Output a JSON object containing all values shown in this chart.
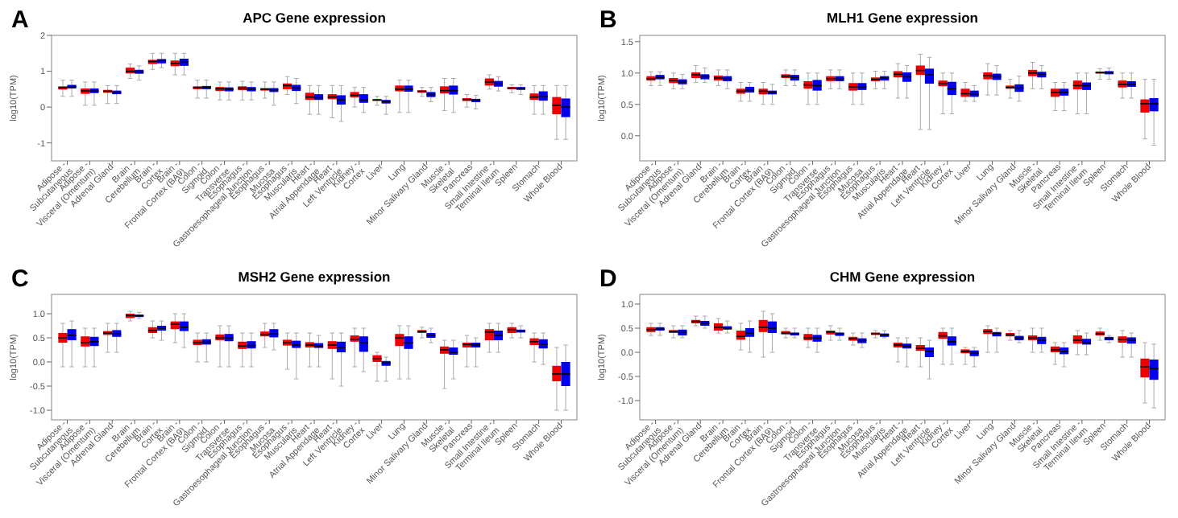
{
  "chart_data": [
    {
      "type": "box",
      "title": "APC Gene expression",
      "ylabel": "log10(TPM)",
      "annotations": [
        "A"
      ],
      "categories": [
        "Adipose - Subcutaneous",
        "Adipose - Visceral (Omentum)",
        "Adrenal Gland",
        "Brain - Cerebellum",
        "Brain - Cortex",
        "Brain - Frontal Cortex (BA9)",
        "Colon - Sigmoid",
        "Colon - Transverse",
        "Esophagus - Gastroesophageal Junction",
        "Esophagus - Mucosa",
        "Esophagus - Muscularis",
        "Heart - Atrial Appendage",
        "Heart - Left Ventricle",
        "Kidney - Cortex",
        "Liver",
        "Lung",
        "Minor Salivary Gland",
        "Muscle - Skeletal",
        "Pancreas",
        "Small Intestine - Terminal Ileum",
        "Spleen",
        "Stomach",
        "Whole Blood"
      ],
      "ylim": [
        -1.5,
        2
      ],
      "yticks": [
        -1,
        0,
        1,
        2
      ],
      "series": [
        {
          "color": "#ee0000",
          "boxes": [
            {
              "low": 0.3,
              "q1": 0.49,
              "median": 0.54,
              "q3": 0.58,
              "high": 0.75
            },
            {
              "low": 0.05,
              "q1": 0.37,
              "median": 0.45,
              "q3": 0.52,
              "high": 0.7
            },
            {
              "low": 0.1,
              "q1": 0.4,
              "median": 0.44,
              "q3": 0.48,
              "high": 0.6
            },
            {
              "low": 0.8,
              "q1": 0.94,
              "median": 1.0,
              "q3": 1.1,
              "high": 1.2
            },
            {
              "low": 1.05,
              "q1": 1.2,
              "median": 1.27,
              "q3": 1.32,
              "high": 1.5
            },
            {
              "low": 0.9,
              "q1": 1.14,
              "median": 1.22,
              "q3": 1.3,
              "high": 1.5
            },
            {
              "low": 0.25,
              "q1": 0.5,
              "median": 0.54,
              "q3": 0.58,
              "high": 0.75
            },
            {
              "low": 0.2,
              "q1": 0.45,
              "median": 0.51,
              "q3": 0.56,
              "high": 0.7
            },
            {
              "low": 0.2,
              "q1": 0.47,
              "median": 0.53,
              "q3": 0.58,
              "high": 0.72
            },
            {
              "low": 0.25,
              "q1": 0.46,
              "median": 0.5,
              "q3": 0.53,
              "high": 0.7
            },
            {
              "low": 0.35,
              "q1": 0.5,
              "median": 0.6,
              "q3": 0.66,
              "high": 0.85
            },
            {
              "low": -0.2,
              "q1": 0.2,
              "median": 0.28,
              "q3": 0.4,
              "high": 0.6
            },
            {
              "low": -0.3,
              "q1": 0.22,
              "median": 0.28,
              "q3": 0.36,
              "high": 0.6
            },
            {
              "low": 0.0,
              "q1": 0.27,
              "median": 0.33,
              "q3": 0.42,
              "high": 0.55
            },
            {
              "low": 0.05,
              "q1": 0.17,
              "median": 0.2,
              "q3": 0.22,
              "high": 0.3
            },
            {
              "low": -0.15,
              "q1": 0.44,
              "median": 0.5,
              "q3": 0.6,
              "high": 0.75
            },
            {
              "low": 0.3,
              "q1": 0.4,
              "median": 0.44,
              "q3": 0.47,
              "high": 0.55
            },
            {
              "low": -0.1,
              "q1": 0.38,
              "median": 0.46,
              "q3": 0.58,
              "high": 0.8
            },
            {
              "low": 0.0,
              "q1": 0.17,
              "median": 0.21,
              "q3": 0.25,
              "high": 0.35
            },
            {
              "low": 0.5,
              "q1": 0.6,
              "median": 0.7,
              "q3": 0.8,
              "high": 0.9
            },
            {
              "low": 0.4,
              "q1": 0.5,
              "median": 0.53,
              "q3": 0.56,
              "high": 0.62
            },
            {
              "low": -0.2,
              "q1": 0.2,
              "median": 0.28,
              "q3": 0.38,
              "high": 0.6
            },
            {
              "low": -0.9,
              "q1": -0.2,
              "median": 0.05,
              "q3": 0.28,
              "high": 0.6
            }
          ]
        },
        {
          "color": "#0000ee",
          "boxes": [
            {
              "low": 0.3,
              "q1": 0.52,
              "median": 0.57,
              "q3": 0.62,
              "high": 0.75
            },
            {
              "low": 0.05,
              "q1": 0.39,
              "median": 0.45,
              "q3": 0.52,
              "high": 0.7
            },
            {
              "low": 0.1,
              "q1": 0.36,
              "median": 0.4,
              "q3": 0.46,
              "high": 0.6
            },
            {
              "low": 0.75,
              "q1": 0.93,
              "median": 0.98,
              "q3": 1.04,
              "high": 1.15
            },
            {
              "low": 1.1,
              "q1": 1.22,
              "median": 1.3,
              "q3": 1.34,
              "high": 1.5
            },
            {
              "low": 0.9,
              "q1": 1.15,
              "median": 1.25,
              "q3": 1.35,
              "high": 1.5
            },
            {
              "low": 0.25,
              "q1": 0.5,
              "median": 0.55,
              "q3": 0.59,
              "high": 0.75
            },
            {
              "low": 0.2,
              "q1": 0.44,
              "median": 0.5,
              "q3": 0.55,
              "high": 0.7
            },
            {
              "low": 0.2,
              "q1": 0.44,
              "median": 0.5,
              "q3": 0.56,
              "high": 0.7
            },
            {
              "low": 0.05,
              "q1": 0.42,
              "median": 0.48,
              "q3": 0.53,
              "high": 0.7
            },
            {
              "low": 0.1,
              "q1": 0.45,
              "median": 0.53,
              "q3": 0.62,
              "high": 0.8
            },
            {
              "low": -0.2,
              "q1": 0.2,
              "median": 0.26,
              "q3": 0.36,
              "high": 0.6
            },
            {
              "low": -0.4,
              "q1": 0.07,
              "median": 0.2,
              "q3": 0.33,
              "high": 0.6
            },
            {
              "low": -0.15,
              "q1": 0.12,
              "median": 0.2,
              "q3": 0.36,
              "high": 0.55
            },
            {
              "low": -0.2,
              "q1": 0.1,
              "median": 0.15,
              "q3": 0.2,
              "high": 0.3
            },
            {
              "low": -0.15,
              "q1": 0.43,
              "median": 0.5,
              "q3": 0.6,
              "high": 0.75
            },
            {
              "low": 0.15,
              "q1": 0.28,
              "median": 0.35,
              "q3": 0.42,
              "high": 0.55
            },
            {
              "low": -0.15,
              "q1": 0.35,
              "median": 0.46,
              "q3": 0.6,
              "high": 0.8
            },
            {
              "low": -0.05,
              "q1": 0.14,
              "median": 0.18,
              "q3": 0.23,
              "high": 0.33
            },
            {
              "low": 0.45,
              "q1": 0.57,
              "median": 0.66,
              "q3": 0.73,
              "high": 0.85
            },
            {
              "low": 0.35,
              "q1": 0.48,
              "median": 0.52,
              "q3": 0.56,
              "high": 0.62
            },
            {
              "low": -0.2,
              "q1": 0.18,
              "median": 0.3,
              "q3": 0.44,
              "high": 0.6
            },
            {
              "low": -0.9,
              "q1": -0.28,
              "median": 0.0,
              "q3": 0.24,
              "high": 0.6
            }
          ]
        }
      ]
    },
    {
      "type": "box",
      "title": "MLH1 Gene expression",
      "ylabel": "log10(TPM)",
      "annotations": [
        "B"
      ],
      "categories": [
        "Adipose - Subcutaneous",
        "Adipose - Visceral (Omentum)",
        "Adrenal Gland",
        "Brain - Cerebellum",
        "Brain - Cortex",
        "Brain - Frontal Cortex (BA9)",
        "Colon - Sigmoid",
        "Colon - Transverse",
        "Esophagus - Gastroesophageal Junction",
        "Esophagus - Mucosa",
        "Esophagus - Muscularis",
        "Heart - Atrial Appendage",
        "Heart - Left Ventricle",
        "Kidney - Cortex",
        "Liver",
        "Lung",
        "Minor Salivary Gland",
        "Muscle - Skeletal",
        "Pancreas",
        "Small Intestine - Terminal Ileum",
        "Spleen",
        "Stomach",
        "Whole Blood"
      ],
      "ylim": [
        -0.4,
        1.6
      ],
      "yticks": [
        {
          "value": 0,
          "label": "0.0"
        },
        0.5,
        {
          "value": 1,
          "label": "1.0"
        },
        1.5
      ],
      "series": [
        {
          "color": "#ee0000",
          "boxes": [
            {
              "low": 0.8,
              "q1": 0.88,
              "median": 0.91,
              "q3": 0.95,
              "high": 1.02
            },
            {
              "low": 0.75,
              "q1": 0.84,
              "median": 0.88,
              "q3": 0.92,
              "high": 1.0
            },
            {
              "low": 0.85,
              "q1": 0.92,
              "median": 0.97,
              "q3": 1.01,
              "high": 1.12
            },
            {
              "low": 0.8,
              "q1": 0.88,
              "median": 0.92,
              "q3": 0.96,
              "high": 1.05
            },
            {
              "low": 0.55,
              "q1": 0.67,
              "median": 0.71,
              "q3": 0.75,
              "high": 0.85
            },
            {
              "low": 0.5,
              "q1": 0.66,
              "median": 0.71,
              "q3": 0.75,
              "high": 0.85
            },
            {
              "low": 0.8,
              "q1": 0.92,
              "median": 0.95,
              "q3": 0.98,
              "high": 1.05
            },
            {
              "low": 0.5,
              "q1": 0.75,
              "median": 0.81,
              "q3": 0.87,
              "high": 1.0
            },
            {
              "low": 0.75,
              "q1": 0.87,
              "median": 0.91,
              "q3": 0.95,
              "high": 1.05
            },
            {
              "low": 0.5,
              "q1": 0.72,
              "median": 0.78,
              "q3": 0.84,
              "high": 1.0
            },
            {
              "low": 0.75,
              "q1": 0.87,
              "median": 0.9,
              "q3": 0.93,
              "high": 1.03
            },
            {
              "low": 0.6,
              "q1": 0.93,
              "median": 0.98,
              "q3": 1.03,
              "high": 1.15
            },
            {
              "low": 0.1,
              "q1": 0.97,
              "median": 1.04,
              "q3": 1.12,
              "high": 1.3
            },
            {
              "low": 0.35,
              "q1": 0.79,
              "median": 0.83,
              "q3": 0.88,
              "high": 1.0
            },
            {
              "low": 0.55,
              "q1": 0.62,
              "median": 0.67,
              "q3": 0.75,
              "high": 0.85
            },
            {
              "low": 0.65,
              "q1": 0.9,
              "median": 0.96,
              "q3": 1.01,
              "high": 1.15
            },
            {
              "low": 0.6,
              "q1": 0.75,
              "median": 0.77,
              "q3": 0.8,
              "high": 0.9
            },
            {
              "low": 0.75,
              "q1": 0.95,
              "median": 1.0,
              "q3": 1.05,
              "high": 1.17
            },
            {
              "low": 0.4,
              "q1": 0.62,
              "median": 0.69,
              "q3": 0.75,
              "high": 0.85
            },
            {
              "low": 0.35,
              "q1": 0.74,
              "median": 0.8,
              "q3": 0.88,
              "high": 1.0
            },
            {
              "low": 0.9,
              "q1": 0.99,
              "median": 1.01,
              "q3": 1.02,
              "high": 1.07
            },
            {
              "low": 0.6,
              "q1": 0.77,
              "median": 0.82,
              "q3": 0.88,
              "high": 1.0
            },
            {
              "low": -0.05,
              "q1": 0.37,
              "median": 0.51,
              "q3": 0.58,
              "high": 0.9
            }
          ]
        },
        {
          "color": "#0000ee",
          "boxes": [
            {
              "low": 0.8,
              "q1": 0.9,
              "median": 0.93,
              "q3": 0.97,
              "high": 1.02
            },
            {
              "low": 0.75,
              "q1": 0.82,
              "median": 0.86,
              "q3": 0.9,
              "high": 0.98
            },
            {
              "low": 0.85,
              "q1": 0.9,
              "median": 0.94,
              "q3": 0.98,
              "high": 1.08
            },
            {
              "low": 0.75,
              "q1": 0.87,
              "median": 0.91,
              "q3": 0.95,
              "high": 1.05
            },
            {
              "low": 0.55,
              "q1": 0.69,
              "median": 0.73,
              "q3": 0.78,
              "high": 0.85
            },
            {
              "low": 0.5,
              "q1": 0.66,
              "median": 0.69,
              "q3": 0.72,
              "high": 0.82
            },
            {
              "low": 0.8,
              "q1": 0.88,
              "median": 0.93,
              "q3": 0.97,
              "high": 1.05
            },
            {
              "low": 0.5,
              "q1": 0.72,
              "median": 0.8,
              "q3": 0.89,
              "high": 1.0
            },
            {
              "low": 0.75,
              "q1": 0.87,
              "median": 0.91,
              "q3": 0.95,
              "high": 1.05
            },
            {
              "low": 0.5,
              "q1": 0.73,
              "median": 0.78,
              "q3": 0.84,
              "high": 1.0
            },
            {
              "low": 0.75,
              "q1": 0.88,
              "median": 0.92,
              "q3": 0.95,
              "high": 1.03
            },
            {
              "low": 0.6,
              "q1": 0.86,
              "median": 0.94,
              "q3": 1.01,
              "high": 1.12
            },
            {
              "low": 0.1,
              "q1": 0.83,
              "median": 0.97,
              "q3": 1.07,
              "high": 1.25
            },
            {
              "low": 0.35,
              "q1": 0.65,
              "median": 0.75,
              "q3": 0.86,
              "high": 1.0
            },
            {
              "low": 0.55,
              "q1": 0.62,
              "median": 0.66,
              "q3": 0.72,
              "high": 0.8
            },
            {
              "low": 0.65,
              "q1": 0.89,
              "median": 0.94,
              "q3": 0.99,
              "high": 1.12
            },
            {
              "low": 0.55,
              "q1": 0.7,
              "median": 0.76,
              "q3": 0.82,
              "high": 0.95
            },
            {
              "low": 0.75,
              "q1": 0.93,
              "median": 0.98,
              "q3": 1.02,
              "high": 1.12
            },
            {
              "low": 0.4,
              "q1": 0.64,
              "median": 0.69,
              "q3": 0.75,
              "high": 0.85
            },
            {
              "low": 0.35,
              "q1": 0.73,
              "median": 0.8,
              "q3": 0.85,
              "high": 1.0
            },
            {
              "low": 0.9,
              "q1": 0.98,
              "median": 1.01,
              "q3": 1.03,
              "high": 1.08
            },
            {
              "low": 0.6,
              "q1": 0.78,
              "median": 0.82,
              "q3": 0.87,
              "high": 1.0
            },
            {
              "low": -0.15,
              "q1": 0.39,
              "median": 0.51,
              "q3": 0.6,
              "high": 0.9
            }
          ]
        }
      ]
    },
    {
      "type": "box",
      "title": "MSH2 Gene expression",
      "ylabel": "log10(TPM)",
      "annotations": [
        "C"
      ],
      "categories": [
        "Adipose - Subcutaneous",
        "Adipose - Visceral (Omentum)",
        "Adrenal Gland",
        "Brain - Cerebellum",
        "Brain - Cortex",
        "Brain - Frontal Cortex (BA9)",
        "Colon - Sigmoid",
        "Colon - Transverse",
        "Esophagus - Gastroesophageal Junction",
        "Esophagus - Mucosa",
        "Esophagus - Muscularis",
        "Heart - Atrial Appendage",
        "Heart - Left Ventricle",
        "Kidney - Cortex",
        "Liver",
        "Lung",
        "Minor Salivary Gland",
        "Muscle - Skeletal",
        "Pancreas",
        "Small Intestine - Terminal Ileum",
        "Spleen",
        "Stomach",
        "Whole Blood"
      ],
      "ylim": [
        -1.2,
        1.4
      ],
      "yticks": [
        {
          "value": -1,
          "label": "-1.0"
        },
        -0.5,
        {
          "value": 0,
          "label": "0.0"
        },
        0.5,
        {
          "value": 1,
          "label": "1.0"
        }
      ],
      "series": [
        {
          "color": "#ee0000",
          "boxes": [
            {
              "low": -0.1,
              "q1": 0.4,
              "median": 0.5,
              "q3": 0.6,
              "high": 0.8
            },
            {
              "low": -0.1,
              "q1": 0.32,
              "median": 0.4,
              "q3": 0.53,
              "high": 0.7
            },
            {
              "low": 0.2,
              "q1": 0.56,
              "median": 0.6,
              "q3": 0.64,
              "high": 0.8
            },
            {
              "low": 0.85,
              "q1": 0.91,
              "median": 0.96,
              "q3": 1.0,
              "high": 1.05
            },
            {
              "low": 0.5,
              "q1": 0.6,
              "median": 0.65,
              "q3": 0.72,
              "high": 0.85
            },
            {
              "low": 0.4,
              "q1": 0.68,
              "median": 0.78,
              "q3": 0.84,
              "high": 1.0
            },
            {
              "low": 0.0,
              "q1": 0.35,
              "median": 0.4,
              "q3": 0.46,
              "high": 0.6
            },
            {
              "low": -0.1,
              "q1": 0.45,
              "median": 0.5,
              "q3": 0.57,
              "high": 0.75
            },
            {
              "low": -0.1,
              "q1": 0.27,
              "median": 0.33,
              "q3": 0.42,
              "high": 0.6
            },
            {
              "low": 0.3,
              "q1": 0.53,
              "median": 0.57,
              "q3": 0.63,
              "high": 0.8
            },
            {
              "low": -0.15,
              "q1": 0.34,
              "median": 0.4,
              "q3": 0.46,
              "high": 0.6
            },
            {
              "low": -0.1,
              "q1": 0.3,
              "median": 0.35,
              "q3": 0.41,
              "high": 0.6
            },
            {
              "low": -0.35,
              "q1": 0.27,
              "median": 0.35,
              "q3": 0.43,
              "high": 0.6
            },
            {
              "low": -0.1,
              "q1": 0.42,
              "median": 0.47,
              "q3": 0.55,
              "high": 0.7
            },
            {
              "low": -0.4,
              "q1": 0.0,
              "median": 0.07,
              "q3": 0.14,
              "high": 0.2
            },
            {
              "low": -0.35,
              "q1": 0.33,
              "median": 0.5,
              "q3": 0.58,
              "high": 0.75
            },
            {
              "low": 0.5,
              "q1": 0.6,
              "median": 0.63,
              "q3": 0.66,
              "high": 0.72
            },
            {
              "low": -0.55,
              "q1": 0.17,
              "median": 0.25,
              "q3": 0.32,
              "high": 0.45
            },
            {
              "low": -0.1,
              "q1": 0.3,
              "median": 0.36,
              "q3": 0.4,
              "high": 0.55
            },
            {
              "low": 0.2,
              "q1": 0.45,
              "median": 0.62,
              "q3": 0.68,
              "high": 0.8
            },
            {
              "low": 0.5,
              "q1": 0.6,
              "median": 0.67,
              "q3": 0.72,
              "high": 0.8
            },
            {
              "low": 0.0,
              "q1": 0.35,
              "median": 0.42,
              "q3": 0.49,
              "high": 0.6
            },
            {
              "low": -1.0,
              "q1": -0.4,
              "median": -0.25,
              "q3": -0.08,
              "high": 0.3
            }
          ]
        },
        {
          "color": "#0000ee",
          "boxes": [
            {
              "low": -0.1,
              "q1": 0.45,
              "median": 0.55,
              "q3": 0.68,
              "high": 0.85
            },
            {
              "low": -0.1,
              "q1": 0.33,
              "median": 0.42,
              "q3": 0.52,
              "high": 0.7
            },
            {
              "low": 0.2,
              "q1": 0.52,
              "median": 0.58,
              "q3": 0.66,
              "high": 0.8
            },
            {
              "low": 0.9,
              "q1": 0.93,
              "median": 0.96,
              "q3": 0.98,
              "high": 1.03
            },
            {
              "low": 0.45,
              "q1": 0.65,
              "median": 0.7,
              "q3": 0.75,
              "high": 0.85
            },
            {
              "low": 0.3,
              "q1": 0.64,
              "median": 0.72,
              "q3": 0.84,
              "high": 1.0
            },
            {
              "low": 0.0,
              "q1": 0.36,
              "median": 0.41,
              "q3": 0.47,
              "high": 0.6
            },
            {
              "low": -0.1,
              "q1": 0.43,
              "median": 0.5,
              "q3": 0.58,
              "high": 0.75
            },
            {
              "low": -0.1,
              "q1": 0.28,
              "median": 0.34,
              "q3": 0.43,
              "high": 0.6
            },
            {
              "low": 0.25,
              "q1": 0.51,
              "median": 0.58,
              "q3": 0.68,
              "high": 0.8
            },
            {
              "low": -0.35,
              "q1": 0.29,
              "median": 0.35,
              "q3": 0.44,
              "high": 0.6
            },
            {
              "low": -0.1,
              "q1": 0.29,
              "median": 0.33,
              "q3": 0.39,
              "high": 0.55
            },
            {
              "low": -0.5,
              "q1": 0.2,
              "median": 0.3,
              "q3": 0.42,
              "high": 0.6
            },
            {
              "low": -0.2,
              "q1": 0.21,
              "median": 0.4,
              "q3": 0.53,
              "high": 0.7
            },
            {
              "low": -0.4,
              "q1": -0.08,
              "median": -0.02,
              "q3": 0.02,
              "high": 0.1
            },
            {
              "low": -0.35,
              "q1": 0.27,
              "median": 0.4,
              "q3": 0.53,
              "high": 0.75
            },
            {
              "low": 0.4,
              "q1": 0.5,
              "median": 0.55,
              "q3": 0.6,
              "high": 0.7
            },
            {
              "low": -0.35,
              "q1": 0.15,
              "median": 0.2,
              "q3": 0.3,
              "high": 0.45
            },
            {
              "low": -0.1,
              "q1": 0.3,
              "median": 0.35,
              "q3": 0.4,
              "high": 0.5
            },
            {
              "low": 0.2,
              "q1": 0.45,
              "median": 0.55,
              "q3": 0.65,
              "high": 0.8
            },
            {
              "low": 0.5,
              "q1": 0.61,
              "median": 0.64,
              "q3": 0.67,
              "high": 0.75
            },
            {
              "low": -0.05,
              "q1": 0.28,
              "median": 0.37,
              "q3": 0.47,
              "high": 0.6
            },
            {
              "low": -1.0,
              "q1": -0.5,
              "median": -0.25,
              "q3": 0.0,
              "high": 0.35
            }
          ]
        }
      ]
    },
    {
      "type": "box",
      "title": "CHM Gene expression",
      "ylabel": "log10(TPM)",
      "annotations": [
        "D"
      ],
      "categories": [
        "Adipose - Subcutaneous",
        "Adipose - Visceral (Omentum)",
        "Adrenal Gland",
        "Brain - Cerebellum",
        "Brain - Cortex",
        "Brain - Frontal Cortex (BA9)",
        "Colon - Sigmoid",
        "Colon - Transverse",
        "Esophagus - Gastroesophageal Junction",
        "Esophagus - Mucosa",
        "Esophagus - Muscularis",
        "Heart - Atrial Appendage",
        "Heart - Left Ventricle",
        "Kidney - Cortex",
        "Liver",
        "Lung",
        "Minor Salivary Gland",
        "Muscle - Skeletal",
        "Pancreas",
        "Small Intestine - Terminal Ileum",
        "Spleen",
        "Stomach",
        "Whole Blood"
      ],
      "ylim": [
        -1.4,
        1.2
      ],
      "yticks": [
        {
          "value": -1,
          "label": "-1.0"
        },
        -0.5,
        {
          "value": 0,
          "label": "0.0"
        },
        0.5,
        {
          "value": 1,
          "label": "1.0"
        }
      ],
      "series": [
        {
          "color": "#ee0000",
          "boxes": [
            {
              "low": 0.35,
              "q1": 0.42,
              "median": 0.47,
              "q3": 0.52,
              "high": 0.6
            },
            {
              "low": 0.3,
              "q1": 0.4,
              "median": 0.43,
              "q3": 0.46,
              "high": 0.55
            },
            {
              "low": 0.55,
              "q1": 0.6,
              "median": 0.64,
              "q3": 0.67,
              "high": 0.75
            },
            {
              "low": 0.4,
              "q1": 0.45,
              "median": 0.52,
              "q3": 0.6,
              "high": 0.7
            },
            {
              "low": 0.05,
              "q1": 0.26,
              "median": 0.33,
              "q3": 0.45,
              "high": 0.6
            },
            {
              "low": -0.1,
              "q1": 0.42,
              "median": 0.52,
              "q3": 0.67,
              "high": 0.85
            },
            {
              "low": 0.3,
              "q1": 0.37,
              "median": 0.4,
              "q3": 0.44,
              "high": 0.5
            },
            {
              "low": 0.1,
              "q1": 0.25,
              "median": 0.3,
              "q3": 0.38,
              "high": 0.5
            },
            {
              "low": 0.25,
              "q1": 0.37,
              "median": 0.42,
              "q3": 0.45,
              "high": 0.55
            },
            {
              "low": 0.15,
              "q1": 0.24,
              "median": 0.28,
              "q3": 0.32,
              "high": 0.4
            },
            {
              "low": 0.3,
              "q1": 0.36,
              "median": 0.38,
              "q3": 0.41,
              "high": 0.45
            },
            {
              "low": -0.2,
              "q1": 0.1,
              "median": 0.15,
              "q3": 0.2,
              "high": 0.3
            },
            {
              "low": -0.3,
              "q1": 0.03,
              "median": 0.08,
              "q3": 0.15,
              "high": 0.3
            },
            {
              "low": -0.25,
              "q1": 0.28,
              "median": 0.34,
              "q3": 0.42,
              "high": 0.5
            },
            {
              "low": -0.25,
              "q1": -0.02,
              "median": 0.02,
              "q3": 0.06,
              "high": 0.1
            },
            {
              "low": 0.0,
              "q1": 0.38,
              "median": 0.43,
              "q3": 0.48,
              "high": 0.55
            },
            {
              "low": 0.25,
              "q1": 0.33,
              "median": 0.36,
              "q3": 0.4,
              "high": 0.45
            },
            {
              "low": 0.0,
              "q1": 0.25,
              "median": 0.3,
              "q3": 0.35,
              "high": 0.5
            },
            {
              "low": -0.25,
              "q1": 0.0,
              "median": 0.05,
              "q3": 0.12,
              "high": 0.2
            },
            {
              "low": -0.05,
              "q1": 0.18,
              "median": 0.25,
              "q3": 0.35,
              "high": 0.45
            },
            {
              "low": 0.25,
              "q1": 0.35,
              "median": 0.38,
              "q3": 0.43,
              "high": 0.5
            },
            {
              "low": -0.1,
              "q1": 0.2,
              "median": 0.27,
              "q3": 0.33,
              "high": 0.45
            },
            {
              "low": -1.05,
              "q1": -0.52,
              "median": -0.3,
              "q3": -0.13,
              "high": 0.2
            }
          ]
        },
        {
          "color": "#0000ee",
          "boxes": [
            {
              "low": 0.35,
              "q1": 0.45,
              "median": 0.48,
              "q3": 0.52,
              "high": 0.6
            },
            {
              "low": 0.3,
              "q1": 0.35,
              "median": 0.41,
              "q3": 0.47,
              "high": 0.55
            },
            {
              "low": 0.5,
              "q1": 0.55,
              "median": 0.6,
              "q3": 0.65,
              "high": 0.75
            },
            {
              "low": 0.4,
              "q1": 0.47,
              "median": 0.5,
              "q3": 0.54,
              "high": 0.65
            },
            {
              "low": 0.0,
              "q1": 0.32,
              "median": 0.4,
              "q3": 0.5,
              "high": 0.65
            },
            {
              "low": 0.0,
              "q1": 0.4,
              "median": 0.5,
              "q3": 0.64,
              "high": 0.8
            },
            {
              "low": 0.3,
              "q1": 0.35,
              "median": 0.38,
              "q3": 0.41,
              "high": 0.5
            },
            {
              "low": 0.0,
              "q1": 0.22,
              "median": 0.3,
              "q3": 0.36,
              "high": 0.5
            },
            {
              "low": 0.25,
              "q1": 0.34,
              "median": 0.38,
              "q3": 0.41,
              "high": 0.5
            },
            {
              "low": 0.1,
              "q1": 0.19,
              "median": 0.24,
              "q3": 0.29,
              "high": 0.4
            },
            {
              "low": 0.3,
              "q1": 0.32,
              "median": 0.36,
              "q3": 0.39,
              "high": 0.45
            },
            {
              "low": -0.3,
              "q1": 0.08,
              "median": 0.13,
              "q3": 0.18,
              "high": 0.3
            },
            {
              "low": -0.55,
              "q1": -0.1,
              "median": 0.02,
              "q3": 0.1,
              "high": 0.25
            },
            {
              "low": -0.25,
              "q1": 0.14,
              "median": 0.22,
              "q3": 0.33,
              "high": 0.5
            },
            {
              "low": -0.3,
              "q1": -0.08,
              "median": -0.02,
              "q3": 0.04,
              "high": 0.1
            },
            {
              "low": 0.0,
              "q1": 0.33,
              "median": 0.39,
              "q3": 0.42,
              "high": 0.5
            },
            {
              "low": 0.2,
              "q1": 0.25,
              "median": 0.3,
              "q3": 0.34,
              "high": 0.45
            },
            {
              "low": 0.0,
              "q1": 0.17,
              "median": 0.25,
              "q3": 0.32,
              "high": 0.5
            },
            {
              "low": -0.3,
              "q1": -0.04,
              "median": 0.02,
              "q3": 0.1,
              "high": 0.2
            },
            {
              "low": -0.05,
              "q1": 0.16,
              "median": 0.2,
              "q3": 0.28,
              "high": 0.4
            },
            {
              "low": 0.2,
              "q1": 0.25,
              "median": 0.28,
              "q3": 0.32,
              "high": 0.35
            },
            {
              "low": -0.1,
              "q1": 0.18,
              "median": 0.25,
              "q3": 0.31,
              "high": 0.4
            },
            {
              "low": -1.15,
              "q1": -0.57,
              "median": -0.34,
              "q3": -0.15,
              "high": 0.17
            }
          ]
        }
      ]
    }
  ]
}
